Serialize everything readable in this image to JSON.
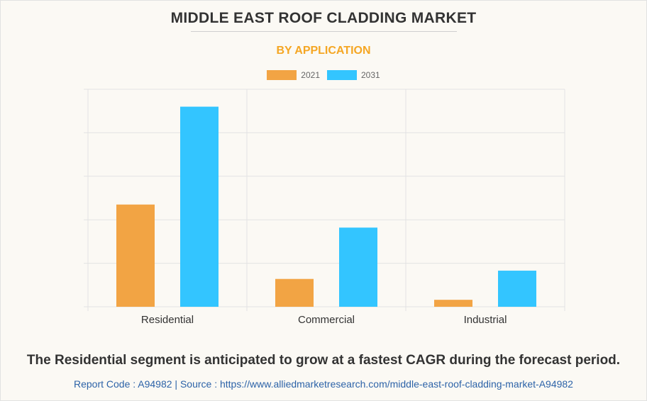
{
  "title": "MIDDLE EAST ROOF CLADDING MARKET",
  "subtitle": "BY APPLICATION",
  "caption": "The Residential segment is anticipated to grow at a fastest CAGR during the forecast period.",
  "source_line": "Report Code : A94982  |  Source : https://www.alliedmarketresearch.com/middle-east-roof-cladding-market-A94982",
  "colors": {
    "series_2021": "#f2a444",
    "series_2031": "#33c5ff",
    "title": "#333333",
    "subtitle": "#f5a623",
    "source": "#2d63a8"
  },
  "chart_data": {
    "type": "bar",
    "title": "MIDDLE EAST ROOF CLADDING MARKET",
    "subtitle": "BY APPLICATION",
    "categories": [
      "Residential",
      "Commercial",
      "Industrial"
    ],
    "series": [
      {
        "name": "2021",
        "values": [
          2.35,
          0.64,
          0.16
        ]
      },
      {
        "name": "2031",
        "values": [
          4.6,
          1.82,
          0.83
        ]
      }
    ],
    "xlabel": "",
    "ylabel": "",
    "ylim": [
      0,
      5
    ],
    "y_ticks_labeled": false,
    "grid": true,
    "legend": "top-center"
  }
}
